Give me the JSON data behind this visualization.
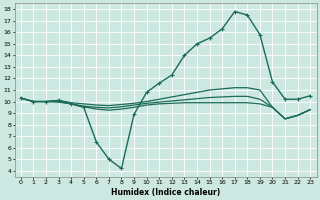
{
  "xlabel": "Humidex (Indice chaleur)",
  "xlim": [
    -0.5,
    23.5
  ],
  "ylim": [
    3.5,
    18.5
  ],
  "xticks": [
    0,
    1,
    2,
    3,
    4,
    5,
    6,
    7,
    8,
    9,
    10,
    11,
    12,
    13,
    14,
    15,
    16,
    17,
    18,
    19,
    20,
    21,
    22,
    23
  ],
  "yticks": [
    4,
    5,
    6,
    7,
    8,
    9,
    10,
    11,
    12,
    13,
    14,
    15,
    16,
    17,
    18
  ],
  "bg_color": "#cce8e0",
  "grid_color": "#ffffff",
  "line_color": "#1a6b5a",
  "lines": [
    {
      "x": [
        0,
        1,
        2,
        3,
        4,
        5,
        6,
        7,
        8,
        9,
        10,
        11,
        12,
        13,
        14,
        15,
        16,
        17,
        18,
        19,
        20,
        21,
        22,
        23
      ],
      "y": [
        10.3,
        10.0,
        10.0,
        10.1,
        9.8,
        9.5,
        6.5,
        5.0,
        4.2,
        8.9,
        10.8,
        11.6,
        12.3,
        14.0,
        15.0,
        15.5,
        16.3,
        17.8,
        17.5,
        15.8,
        11.7,
        10.2,
        10.2,
        10.5
      ],
      "marker": "+",
      "lw": 1.0,
      "ls": "-"
    },
    {
      "x": [
        0,
        1,
        2,
        3,
        4,
        5,
        6,
        7,
        8,
        9,
        10,
        11,
        12,
        13,
        14,
        15,
        16,
        17,
        18,
        19,
        20,
        21,
        22,
        23
      ],
      "y": [
        10.3,
        10.0,
        10.0,
        10.1,
        9.9,
        9.8,
        9.7,
        9.65,
        9.75,
        9.85,
        10.0,
        10.2,
        10.4,
        10.6,
        10.8,
        11.0,
        11.1,
        11.2,
        11.2,
        11.0,
        9.5,
        8.5,
        8.8,
        9.3
      ],
      "marker": null,
      "lw": 0.9,
      "ls": "-"
    },
    {
      "x": [
        0,
        1,
        2,
        3,
        4,
        5,
        6,
        7,
        8,
        9,
        10,
        11,
        12,
        13,
        14,
        15,
        16,
        17,
        18,
        19,
        20,
        21,
        22,
        23
      ],
      "y": [
        10.3,
        10.0,
        10.0,
        9.95,
        9.8,
        9.55,
        9.35,
        9.25,
        9.35,
        9.5,
        9.7,
        9.8,
        9.85,
        9.9,
        9.9,
        9.9,
        9.9,
        9.9,
        9.9,
        9.8,
        9.5,
        8.5,
        8.8,
        9.3
      ],
      "marker": null,
      "lw": 0.9,
      "ls": "-"
    },
    {
      "x": [
        0,
        1,
        2,
        3,
        4,
        5,
        6,
        7,
        8,
        9,
        10,
        11,
        12,
        13,
        14,
        15,
        16,
        17,
        18,
        19,
        20,
        21,
        22,
        23
      ],
      "y": [
        10.3,
        10.0,
        10.0,
        10.0,
        9.8,
        9.6,
        9.5,
        9.45,
        9.55,
        9.7,
        9.85,
        9.95,
        10.05,
        10.15,
        10.25,
        10.35,
        10.4,
        10.45,
        10.45,
        10.2,
        9.5,
        8.5,
        8.8,
        9.3
      ],
      "marker": null,
      "lw": 0.9,
      "ls": "-"
    }
  ]
}
